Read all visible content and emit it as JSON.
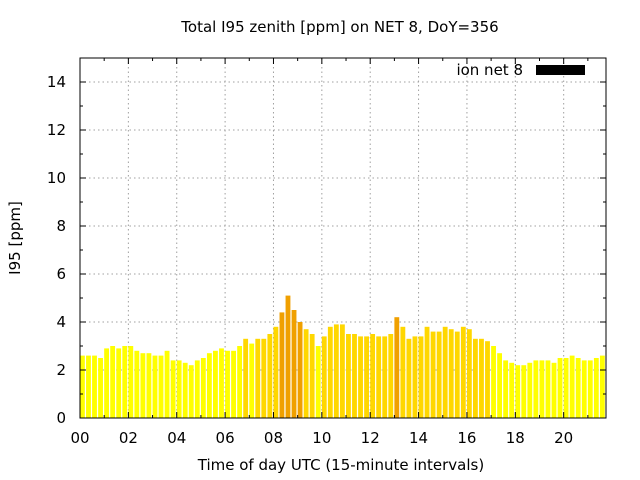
{
  "chart_data": {
    "type": "bar",
    "title": "Total I95 zenith [ppm] on NET 8, DoY=356",
    "xlabel": "Time of day UTC (15-minute intervals)",
    "ylabel": "I95 [ppm]",
    "xlim": [
      0,
      21.75
    ],
    "ylim": [
      0,
      15
    ],
    "x_tick_labels": [
      "00",
      "02",
      "04",
      "06",
      "08",
      "10",
      "12",
      "14",
      "16",
      "18",
      "20"
    ],
    "y_tick_labels": [
      "0",
      "2",
      "4",
      "6",
      "8",
      "10",
      "12",
      "14"
    ],
    "grid": true,
    "legend": {
      "placement": "top-right",
      "entries": [
        {
          "name": "ion net 8",
          "color": "#000000"
        }
      ]
    },
    "bar_step_hours": 0.25,
    "colors": {
      "low": "#ffff00",
      "mid": "#ffd700",
      "high": "#f0a000"
    },
    "series": [
      {
        "name": "ion net 8",
        "x_start": 0,
        "values": [
          2.6,
          2.6,
          2.6,
          2.5,
          2.9,
          3.0,
          2.9,
          3.0,
          3.0,
          2.8,
          2.7,
          2.7,
          2.6,
          2.6,
          2.8,
          2.4,
          2.4,
          2.3,
          2.2,
          2.4,
          2.5,
          2.7,
          2.8,
          2.9,
          2.8,
          2.8,
          3.0,
          3.3,
          3.1,
          3.3,
          3.3,
          3.5,
          3.8,
          4.4,
          5.1,
          4.5,
          4.0,
          3.7,
          3.5,
          3.0,
          3.4,
          3.8,
          3.9,
          3.9,
          3.5,
          3.5,
          3.4,
          3.4,
          3.5,
          3.4,
          3.4,
          3.5,
          4.2,
          3.8,
          3.3,
          3.4,
          3.4,
          3.8,
          3.6,
          3.6,
          3.8,
          3.7,
          3.6,
          3.8,
          3.7,
          3.3,
          3.3,
          3.2,
          3.0,
          2.7,
          2.4,
          2.3,
          2.2,
          2.2,
          2.3,
          2.4,
          2.4,
          2.4,
          2.3,
          2.5,
          2.5,
          2.6,
          2.5,
          2.4,
          2.4,
          2.5,
          2.6,
          2.6
        ]
      }
    ]
  }
}
